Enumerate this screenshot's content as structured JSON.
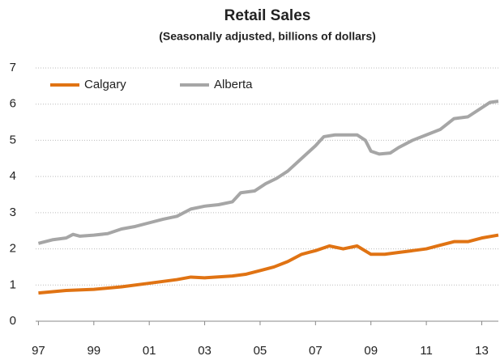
{
  "chart_data": {
    "type": "line",
    "title": "Retail Sales",
    "subtitle": "(Seasonally adjusted, billions of dollars)",
    "series": [
      {
        "name": "Calgary",
        "color": "#e07313",
        "x": [
          1997.0,
          1998.0,
          1999.0,
          2000.0,
          2001.0,
          2002.0,
          2002.5,
          2003.0,
          2004.0,
          2004.5,
          2005.0,
          2005.5,
          2006.0,
          2006.5,
          2007.0,
          2007.5,
          2008.0,
          2008.5,
          2009.0,
          2009.5,
          2010.0,
          2010.5,
          2011.0,
          2011.5,
          2012.0,
          2012.5,
          2013.0,
          2013.6
        ],
        "values": [
          0.78,
          0.85,
          0.88,
          0.95,
          1.05,
          1.15,
          1.22,
          1.2,
          1.25,
          1.3,
          1.4,
          1.5,
          1.65,
          1.85,
          1.95,
          2.08,
          2.0,
          2.08,
          1.85,
          1.85,
          1.9,
          1.95,
          2.0,
          2.1,
          2.2,
          2.2,
          2.3,
          2.38
        ]
      },
      {
        "name": "Alberta",
        "color": "#a6a6a6",
        "x": [
          1997.0,
          1997.5,
          1998.0,
          1998.25,
          1998.5,
          1999.0,
          1999.5,
          2000.0,
          2000.5,
          2001.0,
          2001.5,
          2002.0,
          2002.5,
          2003.0,
          2003.5,
          2004.0,
          2004.3,
          2004.8,
          2005.2,
          2005.6,
          2006.0,
          2006.5,
          2007.0,
          2007.3,
          2007.7,
          2008.0,
          2008.5,
          2008.8,
          2009.0,
          2009.3,
          2009.7,
          2010.0,
          2010.5,
          2011.0,
          2011.5,
          2012.0,
          2012.5,
          2013.0,
          2013.3,
          2013.6
        ],
        "values": [
          2.15,
          2.25,
          2.3,
          2.4,
          2.35,
          2.38,
          2.42,
          2.55,
          2.62,
          2.72,
          2.82,
          2.9,
          3.1,
          3.18,
          3.22,
          3.3,
          3.55,
          3.6,
          3.8,
          3.95,
          4.15,
          4.5,
          4.85,
          5.1,
          5.15,
          5.15,
          5.15,
          5.0,
          4.7,
          4.62,
          4.65,
          4.8,
          5.0,
          5.15,
          5.3,
          5.6,
          5.65,
          5.9,
          6.05,
          6.08
        ]
      }
    ],
    "xlim": [
      1996.9,
      2013.6
    ],
    "xticks": [
      {
        "value": 1997,
        "label": "97"
      },
      {
        "value": 1999,
        "label": "99"
      },
      {
        "value": 2001,
        "label": "01"
      },
      {
        "value": 2003,
        "label": "03"
      },
      {
        "value": 2005,
        "label": "05"
      },
      {
        "value": 2007,
        "label": "07"
      },
      {
        "value": 2009,
        "label": "09"
      },
      {
        "value": 2011,
        "label": "11"
      },
      {
        "value": 2013,
        "label": "13"
      }
    ],
    "ylim": [
      0,
      7
    ],
    "yticks": [
      0,
      1,
      2,
      3,
      4,
      5,
      6,
      7
    ],
    "grid": true,
    "legend": "upper left"
  }
}
